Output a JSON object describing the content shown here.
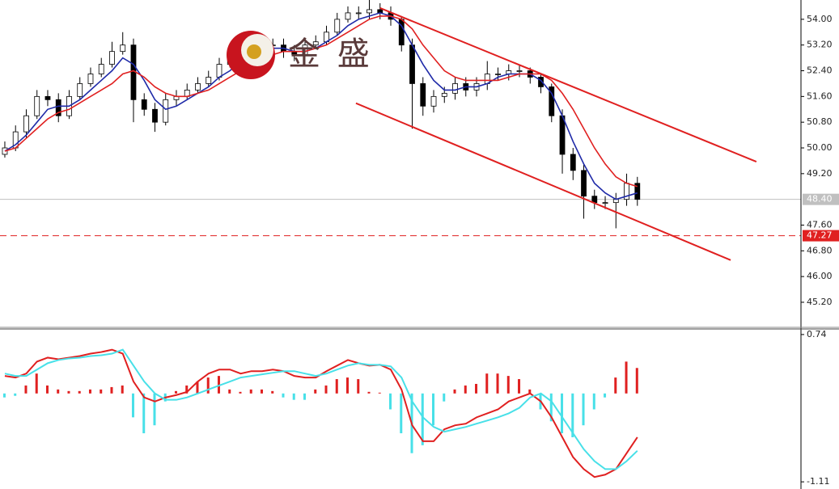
{
  "logo": {
    "text": "金 盛"
  },
  "chart_data": [
    {
      "type": "candlestick",
      "xlim": [
        -0.45,
        74.26
      ],
      "ylim": [
        44.42,
        54.6
      ],
      "yticks": [
        {
          "value": 54,
          "label": "54.00"
        },
        {
          "value": 53.2,
          "label": "53.20"
        },
        {
          "value": 52.4,
          "label": "52.40"
        },
        {
          "value": 51.6,
          "label": "51.60"
        },
        {
          "value": 50.8,
          "label": "50.80"
        },
        {
          "value": 50,
          "label": "50.00"
        },
        {
          "value": 49.2,
          "label": "49.20"
        },
        {
          "value": 47.6,
          "label": "47.60"
        },
        {
          "value": 46.8,
          "label": "46.80"
        },
        {
          "value": 46,
          "label": "46.00"
        },
        {
          "value": 45.2,
          "label": "45.20"
        }
      ],
      "up_color": "#ffffff",
      "down_color": "#000000",
      "open": [
        49.8,
        50.0,
        50.5,
        51.0,
        51.6,
        51.5,
        51.0,
        51.6,
        52.0,
        52.3,
        52.6,
        53.0,
        53.2,
        51.5,
        51.2,
        50.8,
        51.5,
        51.6,
        51.8,
        52.0,
        52.2,
        52.6,
        52.8,
        53.0,
        53.1,
        53.2,
        53.2,
        53.0,
        52.9,
        53.2,
        53.3,
        53.6,
        54.0,
        54.2,
        54.2,
        54.3,
        54.2,
        54.0,
        53.2,
        52.0,
        51.3,
        51.6,
        51.7,
        52.0,
        51.8,
        52.0,
        52.3,
        52.3,
        52.4,
        52.4,
        52.2,
        51.9,
        51.0,
        49.8,
        49.3,
        48.5,
        48.3,
        48.3,
        48.4,
        48.9
      ],
      "high": [
        50.2,
        50.7,
        51.2,
        51.8,
        51.8,
        51.7,
        51.8,
        52.2,
        52.5,
        52.8,
        53.3,
        53.6,
        53.4,
        51.7,
        51.4,
        51.7,
        51.8,
        52.0,
        52.2,
        52.4,
        52.8,
        53.0,
        53.2,
        53.3,
        53.4,
        53.4,
        53.4,
        53.2,
        53.4,
        53.5,
        53.8,
        54.2,
        54.4,
        54.4,
        54.6,
        54.5,
        54.4,
        54.1,
        53.4,
        52.2,
        51.8,
        51.9,
        52.2,
        52.2,
        52.2,
        52.7,
        52.5,
        52.6,
        52.6,
        52.5,
        52.3,
        52.0,
        51.2,
        50.0,
        49.5,
        48.7,
        48.5,
        48.6,
        49.2,
        49.1
      ],
      "low": [
        49.7,
        49.9,
        50.3,
        50.9,
        51.3,
        50.8,
        50.9,
        51.5,
        51.9,
        52.2,
        52.5,
        52.9,
        50.8,
        51.0,
        50.5,
        50.7,
        51.3,
        51.5,
        51.7,
        51.9,
        52.1,
        52.5,
        52.7,
        52.9,
        53.0,
        53.0,
        52.8,
        52.7,
        52.8,
        53.1,
        53.2,
        53.5,
        53.9,
        54.0,
        54.0,
        54.0,
        53.8,
        53.0,
        50.6,
        51.0,
        51.1,
        51.4,
        51.5,
        51.6,
        51.6,
        51.8,
        52.1,
        52.1,
        52.2,
        52.0,
        51.7,
        50.8,
        49.2,
        49.0,
        47.8,
        48.1,
        48.1,
        47.5,
        48.2,
        48.2
      ],
      "close": [
        50.0,
        50.5,
        51.0,
        51.6,
        51.5,
        51.0,
        51.6,
        52.0,
        52.3,
        52.6,
        53.0,
        53.2,
        51.5,
        51.2,
        50.8,
        51.5,
        51.6,
        51.8,
        52.0,
        52.2,
        52.6,
        52.8,
        53.0,
        53.1,
        53.2,
        53.2,
        53.0,
        52.9,
        53.2,
        53.3,
        53.6,
        54.0,
        54.2,
        54.2,
        54.3,
        54.2,
        54.0,
        53.2,
        52.0,
        51.3,
        51.6,
        51.7,
        52.0,
        51.8,
        52.0,
        52.3,
        52.3,
        52.4,
        52.4,
        52.2,
        51.9,
        51.0,
        49.8,
        49.3,
        48.5,
        48.3,
        48.3,
        48.4,
        48.9,
        48.4
      ],
      "series": [
        {
          "color": "#1f2aa8",
          "values": [
            49.9,
            50.1,
            50.4,
            50.8,
            51.2,
            51.3,
            51.3,
            51.5,
            51.8,
            52.1,
            52.4,
            52.8,
            52.6,
            52.1,
            51.5,
            51.2,
            51.3,
            51.5,
            51.7,
            51.9,
            52.2,
            52.4,
            52.7,
            52.9,
            53.0,
            53.1,
            53.1,
            53.0,
            53.0,
            53.1,
            53.3,
            53.5,
            53.8,
            54.0,
            54.1,
            54.2,
            54.1,
            53.8,
            53.2,
            52.6,
            52.1,
            51.8,
            51.8,
            51.9,
            51.9,
            52.0,
            52.2,
            52.3,
            52.3,
            52.3,
            52.1,
            51.7,
            51.0,
            50.2,
            49.5,
            48.9,
            48.6,
            48.4,
            48.5,
            48.6
          ]
        },
        {
          "color": "#e02020",
          "values": [
            49.9,
            50.0,
            50.3,
            50.6,
            50.9,
            51.1,
            51.2,
            51.4,
            51.6,
            51.8,
            52.0,
            52.3,
            52.4,
            52.2,
            51.9,
            51.7,
            51.6,
            51.6,
            51.7,
            51.8,
            52.0,
            52.2,
            52.4,
            52.6,
            52.8,
            52.9,
            53.0,
            53.0,
            53.0,
            53.1,
            53.2,
            53.4,
            53.6,
            53.8,
            54.0,
            54.1,
            54.1,
            54.0,
            53.7,
            53.2,
            52.8,
            52.4,
            52.2,
            52.1,
            52.1,
            52.1,
            52.1,
            52.2,
            52.3,
            52.3,
            52.3,
            52.1,
            51.7,
            51.2,
            50.6,
            50.0,
            49.5,
            49.1,
            48.9,
            48.8
          ]
        }
      ],
      "trendlines": [
        {
          "color": "#e02020",
          "x": [
            35,
            70.1
          ],
          "y": [
            54.35,
            49.57
          ]
        },
        {
          "color": "#e02020",
          "x": [
            32.75,
            67.7
          ],
          "y": [
            51.39,
            46.51
          ]
        }
      ],
      "levels": [
        {
          "value": 48.4,
          "label": "48.40",
          "color": "#c0c0c0",
          "dashed": false
        },
        {
          "value": 47.27,
          "color": "#e02020",
          "dashed": true
        }
      ]
    },
    {
      "type": "macd",
      "xlim": [
        -0.45,
        74.26
      ],
      "ylim": [
        -1.2,
        0.81
      ],
      "yticks": [
        0.74,
        -1.11
      ],
      "pos_color": "#e02020",
      "neg_color": "#48e0e8",
      "histogram": [
        -0.05,
        -0.03,
        0.1,
        0.25,
        0.1,
        0.05,
        0.03,
        0.03,
        0.05,
        0.05,
        0.08,
        0.1,
        -0.3,
        -0.5,
        -0.4,
        -0.1,
        0.03,
        0.1,
        0.15,
        0.2,
        0.22,
        0.05,
        0.02,
        0.05,
        0.05,
        0.03,
        -0.05,
        -0.08,
        -0.08,
        0.05,
        0.1,
        0.18,
        0.2,
        0.18,
        0.02,
        0.01,
        -0.2,
        -0.5,
        -0.75,
        -0.65,
        -0.4,
        -0.1,
        0.05,
        0.1,
        0.12,
        0.25,
        0.25,
        0.22,
        0.18,
        0.05,
        -0.2,
        -0.35,
        -0.5,
        -0.55,
        -0.4,
        -0.2,
        -0.05,
        0.2,
        0.4,
        0.32
      ],
      "series": [
        {
          "color": "#e02020",
          "values": [
            0.22,
            0.2,
            0.25,
            0.4,
            0.45,
            0.43,
            0.45,
            0.47,
            0.5,
            0.52,
            0.55,
            0.5,
            0.15,
            -0.05,
            -0.1,
            -0.05,
            -0.02,
            0.02,
            0.15,
            0.25,
            0.3,
            0.3,
            0.25,
            0.28,
            0.28,
            0.3,
            0.28,
            0.22,
            0.2,
            0.2,
            0.28,
            0.35,
            0.42,
            0.38,
            0.35,
            0.36,
            0.3,
            0.05,
            -0.4,
            -0.6,
            -0.6,
            -0.45,
            -0.4,
            -0.38,
            -0.3,
            -0.25,
            -0.2,
            -0.1,
            -0.05,
            0.0,
            -0.1,
            -0.3,
            -0.55,
            -0.8,
            -0.95,
            -1.05,
            -1.02,
            -0.95,
            -0.75,
            -0.55
          ]
        },
        {
          "color": "#48e0e8",
          "values": [
            0.25,
            0.22,
            0.22,
            0.3,
            0.38,
            0.42,
            0.44,
            0.45,
            0.47,
            0.48,
            0.5,
            0.55,
            0.35,
            0.15,
            0.0,
            -0.08,
            -0.08,
            -0.05,
            0.0,
            0.05,
            0.1,
            0.15,
            0.2,
            0.22,
            0.24,
            0.26,
            0.28,
            0.28,
            0.25,
            0.22,
            0.25,
            0.3,
            0.35,
            0.38,
            0.36,
            0.36,
            0.34,
            0.2,
            -0.1,
            -0.3,
            -0.42,
            -0.48,
            -0.45,
            -0.42,
            -0.38,
            -0.34,
            -0.3,
            -0.25,
            -0.18,
            -0.05,
            0.0,
            -0.1,
            -0.3,
            -0.5,
            -0.7,
            -0.85,
            -0.95,
            -0.95,
            -0.85,
            -0.72
          ]
        }
      ]
    }
  ]
}
